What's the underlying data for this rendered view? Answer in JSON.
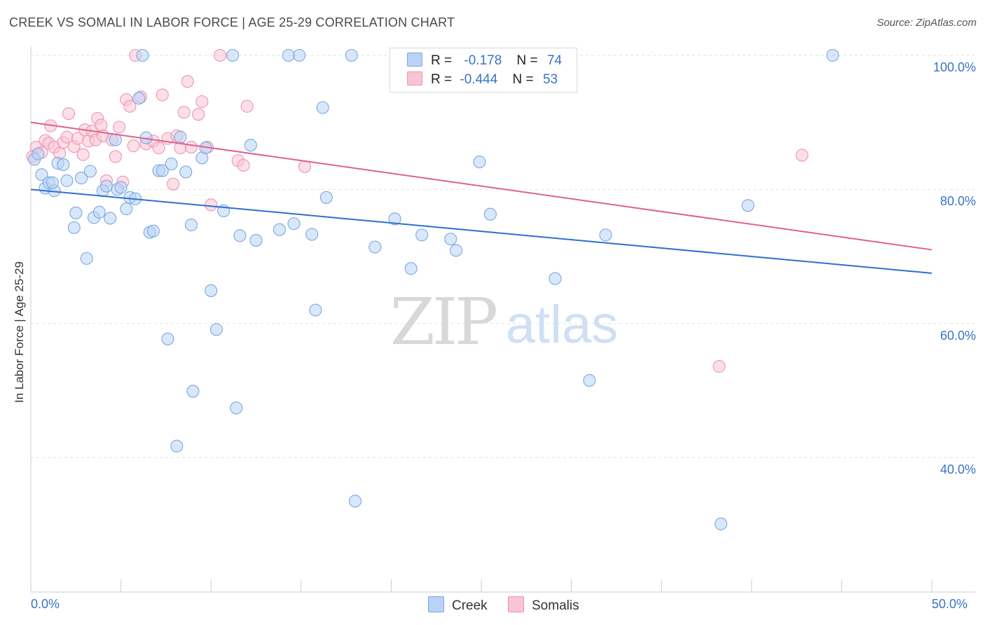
{
  "header": {
    "title": "CREEK VS SOMALI IN LABOR FORCE | AGE 25-29 CORRELATION CHART",
    "source": "Source: ZipAtlas.com"
  },
  "legend": {
    "rows": [
      {
        "r_label": "R =",
        "r_value": "-0.178",
        "n_label": "N =",
        "n_value": "74"
      },
      {
        "r_label": "R =",
        "r_value": "-0.444",
        "n_label": "N =",
        "n_value": "53"
      }
    ]
  },
  "bottom_legend": [
    "Creek",
    "Somalis"
  ],
  "watermark": {
    "zip": "ZIP",
    "atlas": "atlas"
  },
  "colors": {
    "creek_fill": "#b8d3f5",
    "creek_stroke": "#7aa8e0",
    "creek_line": "#2f6fcf",
    "somali_fill": "#f9c4d4",
    "somali_stroke": "#ee95b2",
    "somali_line": "#e0608c",
    "axis_text": "#3a72c8",
    "grid": "#e2e2e2"
  },
  "chart_data": {
    "type": "scatter",
    "title": "CREEK VS SOMALI IN LABOR FORCE | AGE 25-29 CORRELATION CHART",
    "xlabel": "",
    "ylabel": "In Labor Force | Age 25-29",
    "xlim": [
      0,
      50
    ],
    "ylim": [
      22,
      104
    ],
    "x_tick_labels": [
      "0.0%",
      "50.0%"
    ],
    "y_ticks": [
      40,
      60,
      80,
      100
    ],
    "y_tick_labels": [
      "40.0%",
      "60.0%",
      "80.0%",
      "100.0%"
    ],
    "grid": true,
    "legend_position": "top-center",
    "series": [
      {
        "name": "Creek",
        "r": -0.178,
        "n": 74,
        "trend": {
          "x": [
            0,
            50
          ],
          "y": [
            80.0,
            67.5
          ]
        },
        "points": [
          [
            0.2,
            84.5
          ],
          [
            0.6,
            82.2
          ],
          [
            0.8,
            80.2
          ],
          [
            1.0,
            81.0
          ],
          [
            1.3,
            79.8
          ],
          [
            1.5,
            83.9
          ],
          [
            1.8,
            83.7
          ],
          [
            2.0,
            81.3
          ],
          [
            2.5,
            76.5
          ],
          [
            2.8,
            81.7
          ],
          [
            2.4,
            74.3
          ],
          [
            3.1,
            69.7
          ],
          [
            3.3,
            82.7
          ],
          [
            3.5,
            75.8
          ],
          [
            3.8,
            76.6
          ],
          [
            4.0,
            79.8
          ],
          [
            4.2,
            80.5
          ],
          [
            4.4,
            75.7
          ],
          [
            4.7,
            87.4
          ],
          [
            4.8,
            80.0
          ],
          [
            5.3,
            77.1
          ],
          [
            5.5,
            78.8
          ],
          [
            5.8,
            78.6
          ],
          [
            6.0,
            93.6
          ],
          [
            6.2,
            100.0
          ],
          [
            6.4,
            87.7
          ],
          [
            6.6,
            73.6
          ],
          [
            6.8,
            73.8
          ],
          [
            7.1,
            82.8
          ],
          [
            7.3,
            82.8
          ],
          [
            7.6,
            57.7
          ],
          [
            7.8,
            83.8
          ],
          [
            8.1,
            41.7
          ],
          [
            8.3,
            87.8
          ],
          [
            8.6,
            82.6
          ],
          [
            8.9,
            74.7
          ],
          [
            9.0,
            49.9
          ],
          [
            9.5,
            84.7
          ],
          [
            9.7,
            86.2
          ],
          [
            10.0,
            64.9
          ],
          [
            10.3,
            59.1
          ],
          [
            10.7,
            76.8
          ],
          [
            11.2,
            100.0
          ],
          [
            11.4,
            47.4
          ],
          [
            11.6,
            73.1
          ],
          [
            12.2,
            86.6
          ],
          [
            12.5,
            72.4
          ],
          [
            13.8,
            74.0
          ],
          [
            14.3,
            100.0
          ],
          [
            14.6,
            74.9
          ],
          [
            14.9,
            100.0
          ],
          [
            15.6,
            73.3
          ],
          [
            15.8,
            62.0
          ],
          [
            16.2,
            92.2
          ],
          [
            16.4,
            78.8
          ],
          [
            17.8,
            100.0
          ],
          [
            18.0,
            33.5
          ],
          [
            19.1,
            71.4
          ],
          [
            20.2,
            75.6
          ],
          [
            21.1,
            68.2
          ],
          [
            21.7,
            73.2
          ],
          [
            23.3,
            72.6
          ],
          [
            23.6,
            70.9
          ],
          [
            24.9,
            84.1
          ],
          [
            25.5,
            76.3
          ],
          [
            29.1,
            66.7
          ],
          [
            31.0,
            51.5
          ],
          [
            31.9,
            73.2
          ],
          [
            38.3,
            30.1
          ],
          [
            39.8,
            77.6
          ],
          [
            44.5,
            100.0
          ],
          [
            0.4,
            85.3
          ],
          [
            1.2,
            81.0
          ],
          [
            5.0,
            80.3
          ]
        ]
      },
      {
        "name": "Somalis",
        "r": -0.444,
        "n": 53,
        "trend": {
          "x": [
            0,
            50
          ],
          "y": [
            90.0,
            71.0
          ]
        },
        "points": [
          [
            0.3,
            86.3
          ],
          [
            0.6,
            85.5
          ],
          [
            0.8,
            87.3
          ],
          [
            1.0,
            86.9
          ],
          [
            1.1,
            89.5
          ],
          [
            1.3,
            86.3
          ],
          [
            1.6,
            85.4
          ],
          [
            1.8,
            87.0
          ],
          [
            2.0,
            87.8
          ],
          [
            2.1,
            91.3
          ],
          [
            2.4,
            86.4
          ],
          [
            2.6,
            87.6
          ],
          [
            2.9,
            85.2
          ],
          [
            3.0,
            88.9
          ],
          [
            3.2,
            87.2
          ],
          [
            3.4,
            88.7
          ],
          [
            3.6,
            87.4
          ],
          [
            3.7,
            90.6
          ],
          [
            3.9,
            89.6
          ],
          [
            4.0,
            88.0
          ],
          [
            4.2,
            81.3
          ],
          [
            4.5,
            87.4
          ],
          [
            4.7,
            84.9
          ],
          [
            4.9,
            89.3
          ],
          [
            5.1,
            81.1
          ],
          [
            5.3,
            93.4
          ],
          [
            5.5,
            92.4
          ],
          [
            5.7,
            86.5
          ],
          [
            6.1,
            93.8
          ],
          [
            6.4,
            86.8
          ],
          [
            6.8,
            87.2
          ],
          [
            7.1,
            86.2
          ],
          [
            7.3,
            94.1
          ],
          [
            7.6,
            87.6
          ],
          [
            7.9,
            80.8
          ],
          [
            8.1,
            88.0
          ],
          [
            8.3,
            86.2
          ],
          [
            8.5,
            91.5
          ],
          [
            8.7,
            96.1
          ],
          [
            8.9,
            86.3
          ],
          [
            9.3,
            91.2
          ],
          [
            9.5,
            93.1
          ],
          [
            9.8,
            86.3
          ],
          [
            10.0,
            77.7
          ],
          [
            10.5,
            100.0
          ],
          [
            11.5,
            84.3
          ],
          [
            11.8,
            83.6
          ],
          [
            12.0,
            92.4
          ],
          [
            15.2,
            83.4
          ],
          [
            5.8,
            100.0
          ],
          [
            38.2,
            53.6
          ],
          [
            42.8,
            85.1
          ],
          [
            0.1,
            84.9
          ]
        ]
      }
    ]
  }
}
